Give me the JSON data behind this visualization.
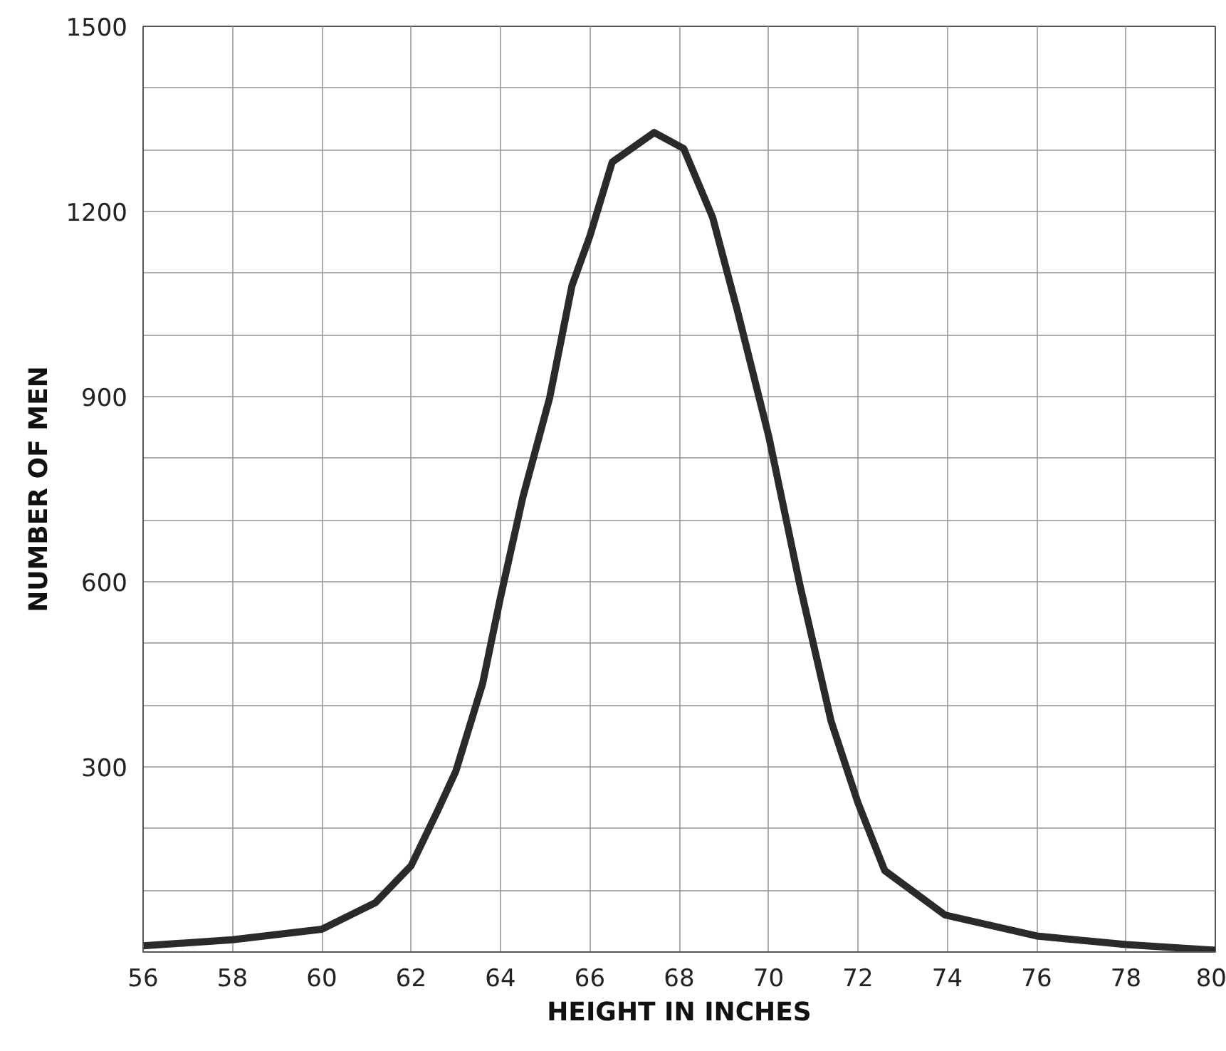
{
  "chart_data": {
    "type": "line",
    "xlabel": "HEIGHT IN INCHES",
    "ylabel": "NUMBER OF MEN",
    "x": [
      56,
      58,
      60,
      61.2,
      62,
      62.6,
      63,
      63.6,
      64,
      64.5,
      65.1,
      65.6,
      66,
      66.5,
      67.44,
      68.1,
      68.75,
      69.3,
      70,
      70.7,
      71.4,
      72,
      72.6,
      73.95,
      76,
      78,
      80
    ],
    "series": [
      {
        "color": "#2a2a2a",
        "values": [
          10,
          20,
          37,
          80,
          140,
          230,
          293,
          435,
          575,
          737,
          898,
          1080,
          1160,
          1280,
          1328,
          1302,
          1190,
          1040,
          837,
          595,
          374,
          242,
          132,
          60,
          26,
          12,
          3
        ]
      }
    ],
    "xlim": [
      56,
      80
    ],
    "ylim": [
      0,
      1500
    ],
    "xticks": [
      56,
      58,
      60,
      62,
      64,
      66,
      68,
      70,
      72,
      74,
      76,
      78,
      80
    ],
    "yticks": [
      {
        "value": 0,
        "label": null
      },
      {
        "value": 100,
        "label": null
      },
      {
        "value": 200,
        "label": null
      },
      300,
      {
        "value": 400,
        "label": null
      },
      {
        "value": 500,
        "label": null
      },
      600,
      {
        "value": 700,
        "label": null
      },
      {
        "value": 800,
        "label": null
      },
      900,
      {
        "value": 1000,
        "label": null
      },
      {
        "value": 1100,
        "label": null
      },
      1200,
      {
        "value": 1300,
        "label": null
      },
      {
        "value": 1400,
        "label": null
      },
      1500
    ],
    "grid": true,
    "line_style": "solid",
    "marker": "none"
  }
}
